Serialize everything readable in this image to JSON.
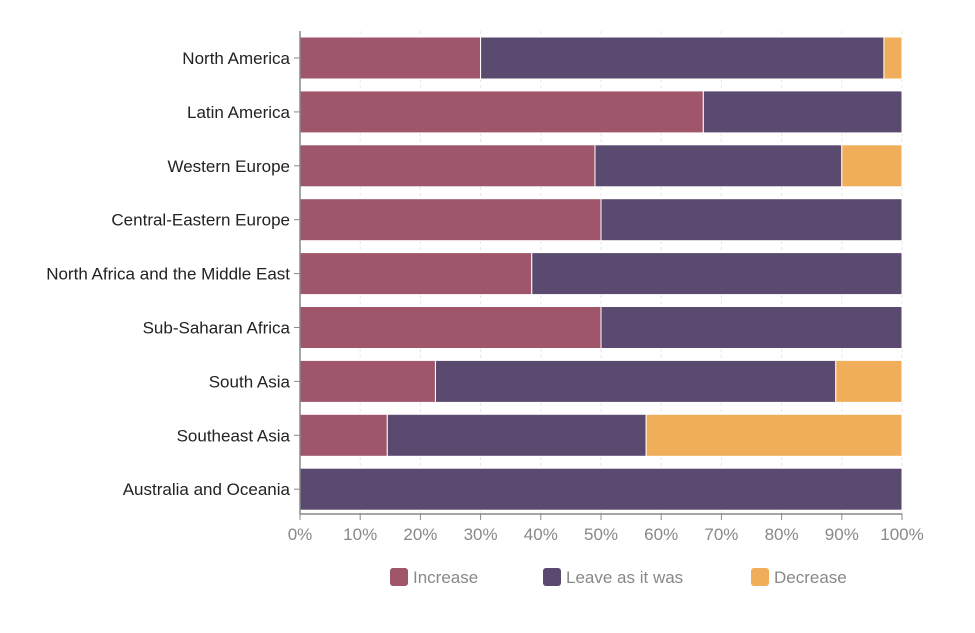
{
  "chart_data": {
    "type": "bar",
    "orientation": "horizontal",
    "stacked": true,
    "categories": [
      "North America",
      "Latin America",
      "Western Europe",
      "Central-Eastern Europe",
      "North Africa and the Middle East",
      "Sub-Saharan Africa",
      "South Asia",
      "Southeast Asia",
      "Australia and Oceania"
    ],
    "series": [
      {
        "name": "Increase",
        "color": "#a0566a",
        "values": [
          30,
          67,
          49,
          50,
          38.5,
          50,
          22.5,
          14.5,
          0
        ]
      },
      {
        "name": "Leave as it was",
        "color": "#5b4a70",
        "values": [
          67,
          33,
          41,
          50,
          61.5,
          50,
          66.5,
          43,
          100
        ]
      },
      {
        "name": "Decrease",
        "color": "#f0ad5a",
        "values": [
          3,
          0,
          10,
          0,
          0,
          0,
          11,
          42.5,
          0
        ]
      }
    ],
    "x_ticks": [
      "0%",
      "10%",
      "20%",
      "30%",
      "40%",
      "50%",
      "60%",
      "70%",
      "80%",
      "90%",
      "100%"
    ],
    "xlim": [
      0,
      100
    ],
    "grid": true,
    "legend_position": "bottom"
  }
}
